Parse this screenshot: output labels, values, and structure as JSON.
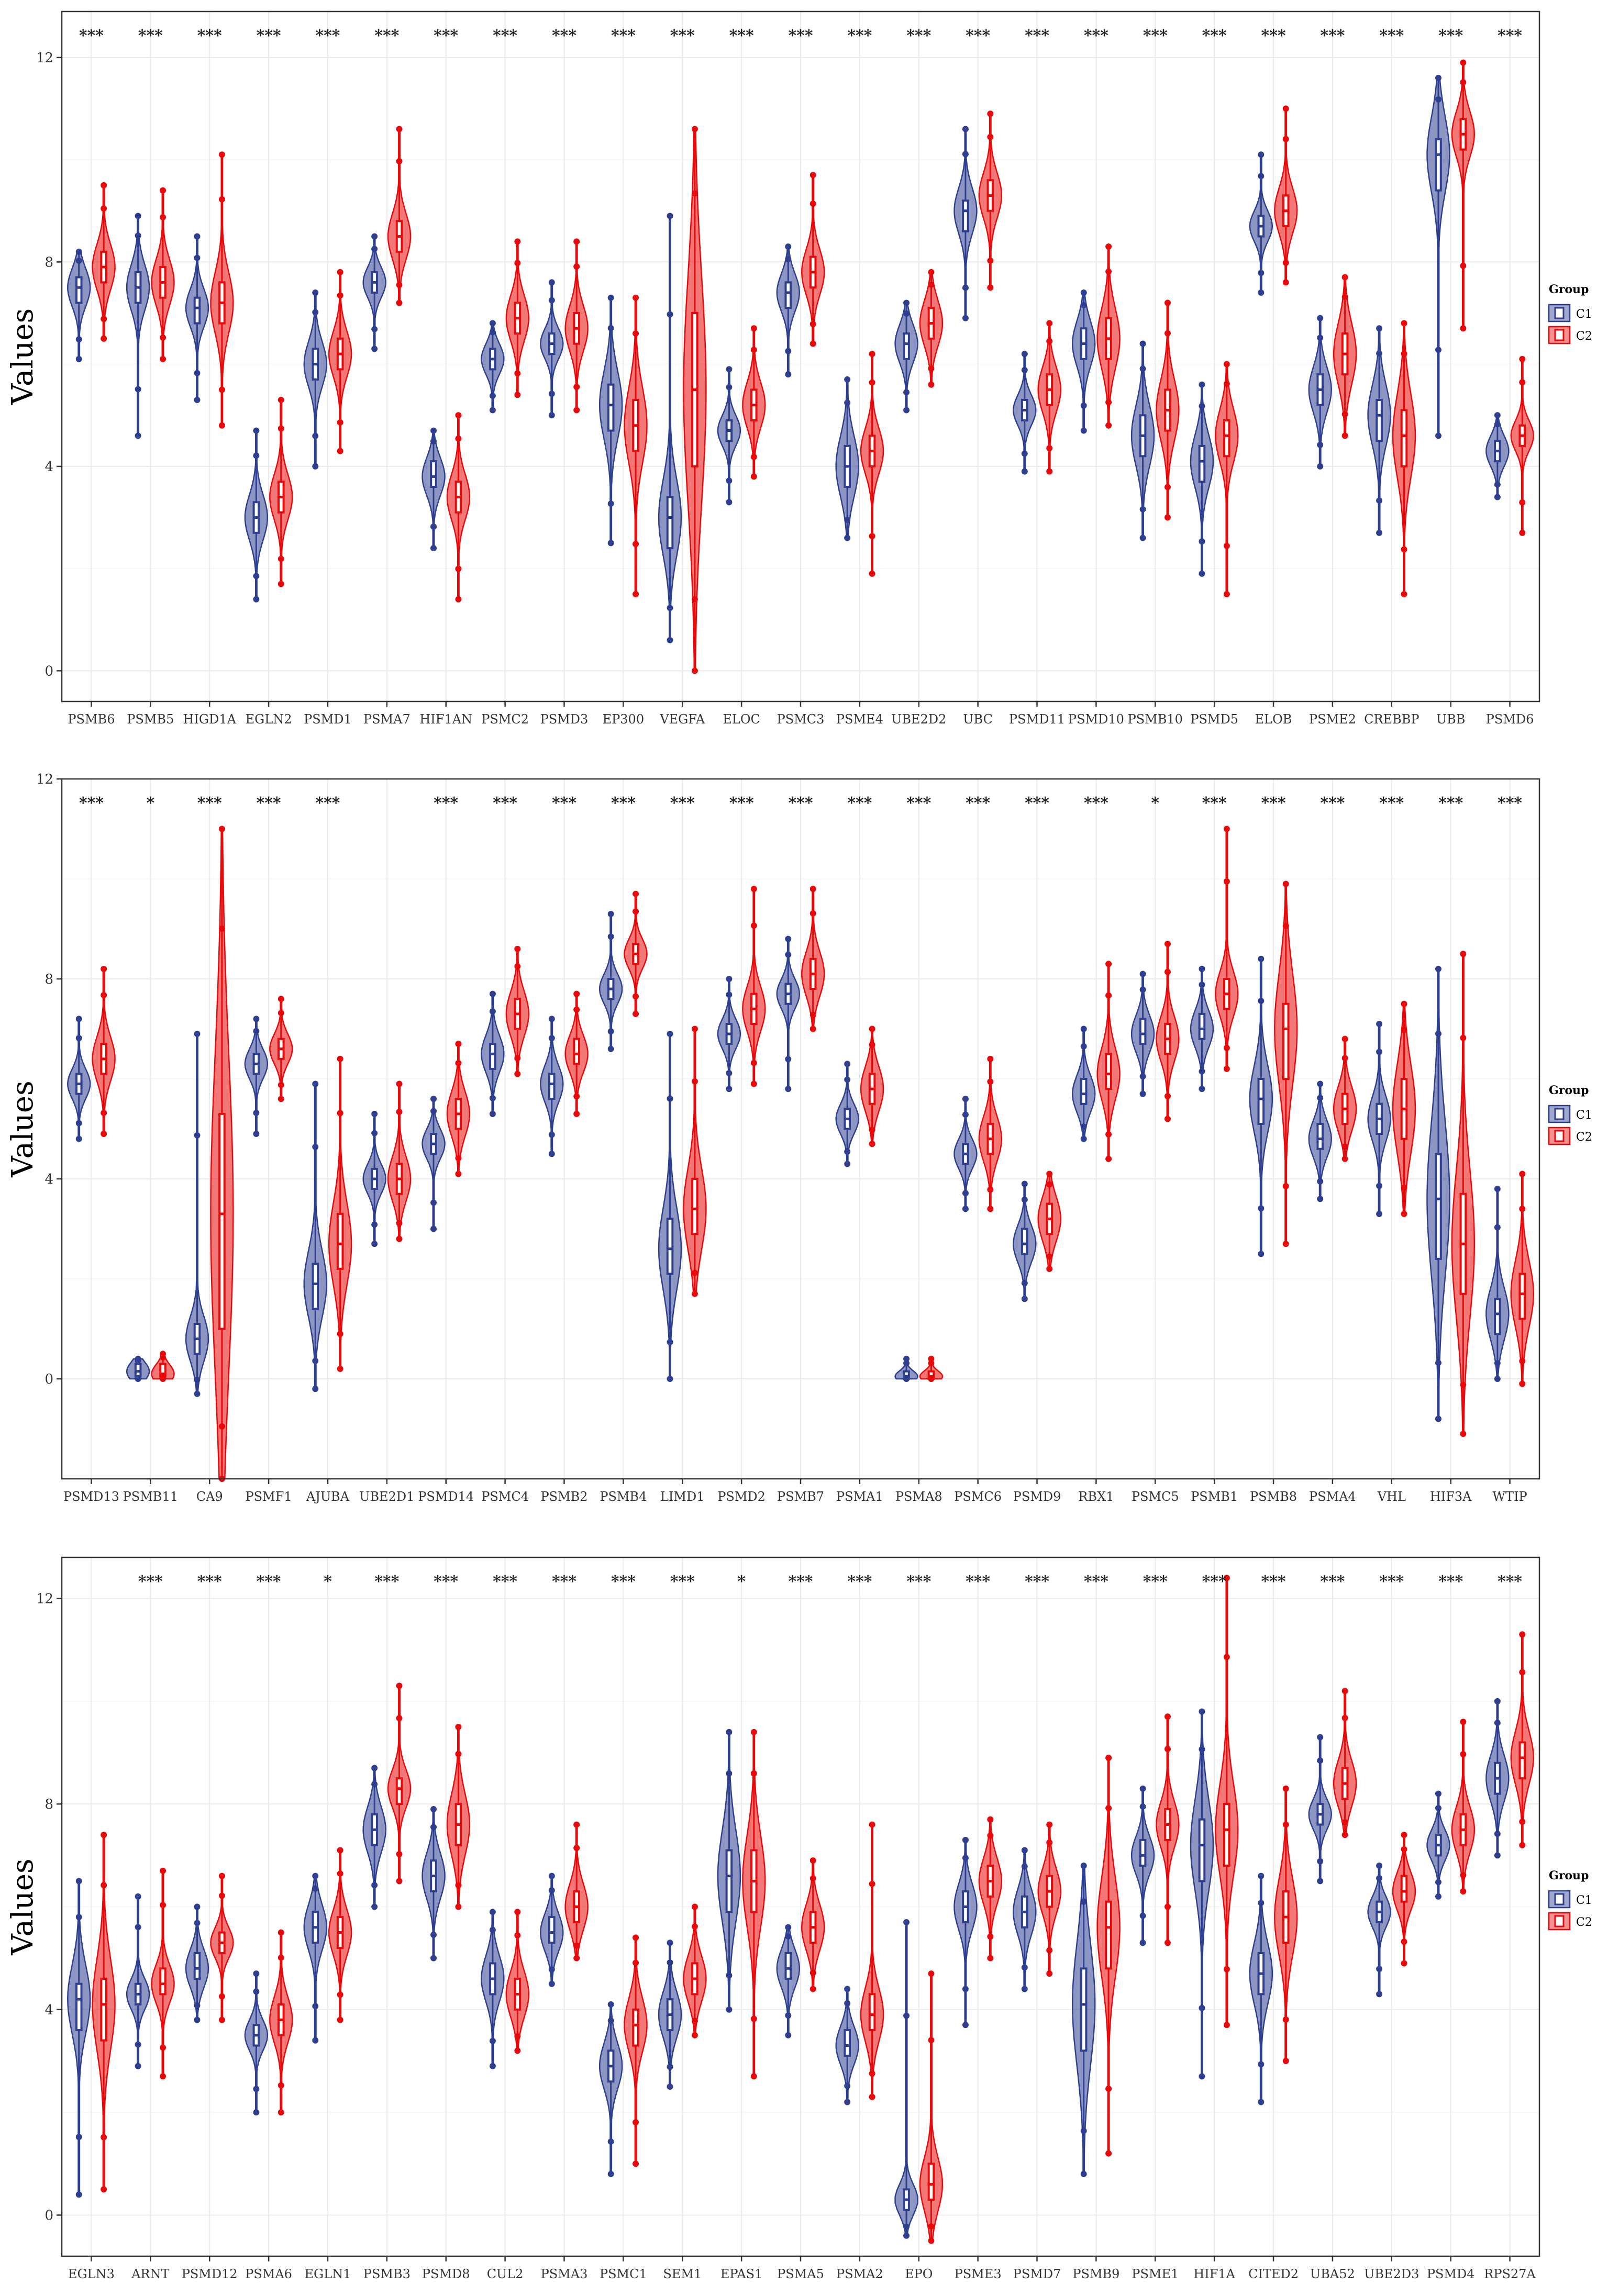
{
  "colors": {
    "c1": "#2f3f90",
    "c2": "#e8090a",
    "grid": "#ebebeb"
  },
  "legend": {
    "title": "Group",
    "labels": [
      "C1",
      "C2"
    ]
  },
  "chart_data": [
    {
      "type": "violin",
      "ylabel": "Values",
      "ylim": [
        -0.6,
        12.9
      ],
      "yticks": [
        0,
        4,
        8,
        12
      ],
      "categories": [
        "PSMB6",
        "PSMB5",
        "HIGD1A",
        "EGLN2",
        "PSMD1",
        "PSMA7",
        "HIF1AN",
        "PSMC2",
        "PSMD3",
        "EP300",
        "VEGFA",
        "ELOC",
        "PSMC3",
        "PSME4",
        "UBE2D2",
        "UBC",
        "PSMD11",
        "PSMD10",
        "PSMB10",
        "PSMD5",
        "ELOB",
        "PSME2",
        "CREBBP",
        "UBB",
        "PSMD6"
      ],
      "significance": [
        "***",
        "***",
        "***",
        "***",
        "***",
        "***",
        "***",
        "***",
        "***",
        "***",
        "***",
        "***",
        "***",
        "***",
        "***",
        "***",
        "***",
        "***",
        "***",
        "***",
        "***",
        "***",
        "***",
        "***",
        "***"
      ],
      "series": [
        {
          "name": "C1",
          "median": [
            7.5,
            7.5,
            7.1,
            3.0,
            6.0,
            7.6,
            3.8,
            6.1,
            6.4,
            5.2,
            3.0,
            4.7,
            7.4,
            4.0,
            6.4,
            9.0,
            5.1,
            6.4,
            4.6,
            4.1,
            8.7,
            5.5,
            5.0,
            10.1,
            4.3
          ],
          "q1": [
            7.2,
            7.2,
            6.8,
            2.7,
            5.7,
            7.4,
            3.6,
            5.9,
            6.2,
            4.7,
            2.4,
            4.5,
            7.1,
            3.6,
            6.1,
            8.6,
            4.9,
            6.1,
            4.2,
            3.7,
            8.5,
            5.2,
            4.5,
            9.4,
            4.1
          ],
          "q3": [
            7.7,
            7.8,
            7.3,
            3.3,
            6.3,
            7.8,
            4.1,
            6.3,
            6.6,
            5.6,
            3.4,
            4.9,
            7.6,
            4.4,
            6.6,
            9.2,
            5.3,
            6.7,
            5.0,
            4.4,
            8.9,
            5.8,
            5.3,
            10.4,
            4.5
          ],
          "min": [
            6.1,
            4.6,
            5.3,
            1.4,
            4.0,
            6.3,
            2.4,
            5.1,
            5.0,
            2.5,
            0.6,
            3.3,
            5.8,
            2.6,
            5.1,
            6.9,
            3.9,
            4.7,
            2.6,
            1.9,
            7.4,
            4.0,
            2.7,
            4.6,
            3.4
          ],
          "max": [
            8.2,
            8.9,
            8.5,
            4.7,
            7.4,
            8.5,
            4.7,
            6.8,
            7.6,
            7.3,
            8.9,
            5.9,
            8.3,
            5.7,
            7.2,
            10.6,
            6.2,
            7.4,
            6.4,
            5.6,
            10.1,
            6.9,
            6.7,
            11.6,
            5.0
          ]
        },
        {
          "name": "C2",
          "median": [
            7.9,
            7.6,
            7.2,
            3.4,
            6.2,
            8.5,
            3.4,
            6.9,
            6.7,
            4.8,
            5.5,
            5.2,
            7.8,
            4.3,
            6.8,
            9.3,
            5.5,
            6.5,
            5.1,
            4.6,
            9.0,
            6.2,
            4.6,
            10.5,
            4.6
          ],
          "q1": [
            7.6,
            7.3,
            6.8,
            3.1,
            5.9,
            8.2,
            3.1,
            6.6,
            6.4,
            4.3,
            4.0,
            4.9,
            7.5,
            4.0,
            6.5,
            9.0,
            5.2,
            6.1,
            4.7,
            4.2,
            8.7,
            5.8,
            4.0,
            10.2,
            4.4
          ],
          "q3": [
            8.2,
            7.9,
            7.6,
            3.7,
            6.5,
            8.8,
            3.7,
            7.2,
            7.0,
            5.3,
            7.0,
            5.5,
            8.1,
            4.6,
            7.1,
            9.6,
            5.8,
            6.9,
            5.5,
            4.9,
            9.3,
            6.6,
            5.1,
            10.8,
            4.8
          ],
          "min": [
            6.5,
            6.1,
            4.8,
            1.7,
            4.3,
            7.2,
            1.4,
            5.4,
            5.1,
            1.5,
            0.0,
            3.8,
            6.4,
            1.9,
            5.6,
            7.5,
            3.9,
            4.8,
            3.0,
            1.5,
            7.6,
            4.6,
            1.5,
            6.7,
            2.7
          ],
          "max": [
            9.5,
            9.4,
            10.1,
            5.3,
            7.8,
            10.6,
            5.0,
            8.4,
            8.4,
            7.3,
            10.6,
            6.7,
            9.7,
            6.2,
            7.8,
            10.9,
            6.8,
            8.3,
            7.2,
            6.0,
            11.0,
            7.7,
            6.8,
            11.9,
            6.1
          ]
        }
      ]
    },
    {
      "type": "violin",
      "ylabel": "Values",
      "ylim": [
        -2.0,
        12.0
      ],
      "yticks": [
        0,
        4,
        8,
        12
      ],
      "categories": [
        "PSMD13",
        "PSMB11",
        "CA9",
        "PSMF1",
        "AJUBA",
        "UBE2D1",
        "PSMD14",
        "PSMC4",
        "PSMB2",
        "PSMB4",
        "LIMD1",
        "PSMD2",
        "PSMB7",
        "PSMA1",
        "PSMA8",
        "PSMC6",
        "PSMD9",
        "RBX1",
        "PSMC5",
        "PSMB1",
        "PSMB8",
        "PSMA4",
        "VHL",
        "HIF3A",
        "WTIP"
      ],
      "significance": [
        "***",
        "*",
        "***",
        "***",
        "***",
        "",
        "***",
        "***",
        "***",
        "***",
        "***",
        "***",
        "***",
        "***",
        "***",
        "***",
        "***",
        "***",
        "*",
        "***",
        "***",
        "***",
        "***",
        "***",
        "***"
      ],
      "series": [
        {
          "name": "C1",
          "median": [
            5.9,
            0.15,
            0.8,
            6.3,
            1.9,
            4.0,
            4.7,
            6.5,
            5.9,
            7.8,
            2.6,
            6.9,
            7.7,
            5.2,
            0.05,
            4.5,
            2.7,
            5.7,
            6.9,
            7.0,
            5.6,
            4.8,
            5.2,
            3.6,
            1.3
          ],
          "q1": [
            5.7,
            0.05,
            0.5,
            6.1,
            1.4,
            3.8,
            4.5,
            6.2,
            5.6,
            7.6,
            2.1,
            6.7,
            7.5,
            5.0,
            0.0,
            4.3,
            2.5,
            5.5,
            6.7,
            6.8,
            5.1,
            4.6,
            4.9,
            2.4,
            0.9
          ],
          "q3": [
            6.1,
            0.3,
            1.1,
            6.5,
            2.3,
            4.2,
            4.9,
            6.7,
            6.1,
            8.0,
            3.2,
            7.1,
            7.9,
            5.4,
            0.15,
            4.7,
            3.0,
            6.0,
            7.2,
            7.3,
            6.0,
            5.1,
            5.5,
            4.5,
            1.6
          ],
          "min": [
            4.8,
            0.0,
            -0.3,
            4.9,
            -0.2,
            2.7,
            3.0,
            5.3,
            4.5,
            6.6,
            0.0,
            5.8,
            5.8,
            4.3,
            0.0,
            3.4,
            1.6,
            4.8,
            5.7,
            5.8,
            2.5,
            3.6,
            3.3,
            -0.8,
            0.0
          ],
          "max": [
            7.2,
            0.4,
            6.9,
            7.2,
            5.9,
            5.3,
            5.6,
            7.7,
            7.2,
            9.3,
            6.9,
            8.0,
            8.8,
            6.3,
            0.4,
            5.6,
            3.9,
            7.0,
            8.1,
            8.2,
            8.4,
            5.9,
            7.1,
            8.2,
            3.8
          ]
        },
        {
          "name": "C2",
          "median": [
            6.4,
            0.1,
            3.3,
            6.6,
            2.7,
            4.0,
            5.3,
            7.3,
            6.5,
            8.5,
            3.4,
            7.4,
            8.1,
            5.8,
            0.05,
            4.8,
            3.2,
            6.1,
            6.8,
            7.7,
            7.0,
            5.4,
            5.4,
            2.7,
            1.7
          ],
          "q1": [
            6.1,
            0.05,
            1.0,
            6.4,
            2.2,
            3.7,
            5.0,
            7.0,
            6.3,
            8.3,
            2.9,
            7.1,
            7.8,
            5.5,
            0.0,
            4.5,
            2.9,
            5.8,
            6.5,
            7.4,
            6.0,
            5.1,
            4.8,
            1.7,
            1.2
          ],
          "q3": [
            6.7,
            0.3,
            5.3,
            6.8,
            3.3,
            4.3,
            5.6,
            7.6,
            6.8,
            8.7,
            4.0,
            7.7,
            8.4,
            6.1,
            0.15,
            5.1,
            3.5,
            6.5,
            7.1,
            8.0,
            7.5,
            5.7,
            6.0,
            3.7,
            2.1
          ],
          "min": [
            4.9,
            0.0,
            -2.0,
            5.6,
            0.2,
            2.8,
            4.1,
            6.1,
            5.3,
            7.3,
            1.7,
            5.9,
            7.0,
            4.7,
            0.0,
            3.4,
            2.2,
            4.4,
            5.2,
            6.2,
            2.7,
            4.4,
            3.3,
            -1.1,
            -0.1
          ],
          "max": [
            8.2,
            0.5,
            11.0,
            7.6,
            6.4,
            5.9,
            6.7,
            8.6,
            7.7,
            9.7,
            7.0,
            9.8,
            9.8,
            7.0,
            0.4,
            6.4,
            4.1,
            8.3,
            8.7,
            11.0,
            9.9,
            6.8,
            7.5,
            8.5,
            4.1
          ]
        }
      ]
    },
    {
      "type": "violin",
      "ylabel": "Values",
      "ylim": [
        -0.8,
        12.8
      ],
      "yticks": [
        0,
        4,
        8,
        12
      ],
      "categories": [
        "EGLN3",
        "ARNT",
        "PSMD12",
        "PSMA6",
        "EGLN1",
        "PSMB3",
        "PSMD8",
        "CUL2",
        "PSMA3",
        "PSMC1",
        "SEM1",
        "EPAS1",
        "PSMA5",
        "PSMA2",
        "EPO",
        "PSME3",
        "PSMD7",
        "PSMB9",
        "PSME1",
        "HIF1A",
        "CITED2",
        "UBA52",
        "UBE2D3",
        "PSMD4",
        "RPS27A"
      ],
      "significance": [
        "",
        "***",
        "***",
        "***",
        "*",
        "***",
        "***",
        "***",
        "***",
        "***",
        "***",
        "*",
        "***",
        "***",
        "***",
        "***",
        "***",
        "***",
        "***",
        "***",
        "***",
        "***",
        "***",
        "***",
        "***"
      ],
      "series": [
        {
          "name": "C1",
          "median": [
            4.2,
            4.3,
            4.8,
            3.5,
            5.6,
            7.5,
            6.6,
            4.6,
            5.5,
            2.9,
            3.9,
            6.6,
            4.8,
            3.3,
            0.3,
            6.0,
            5.9,
            4.1,
            7.0,
            7.2,
            4.7,
            7.8,
            5.9,
            7.2,
            8.5
          ],
          "q1": [
            3.6,
            4.1,
            4.6,
            3.3,
            5.3,
            7.2,
            6.3,
            4.3,
            5.3,
            2.6,
            3.6,
            5.9,
            4.6,
            3.1,
            0.1,
            5.7,
            5.6,
            3.2,
            6.8,
            6.5,
            4.3,
            7.6,
            5.7,
            7.0,
            8.2
          ],
          "q3": [
            4.5,
            4.5,
            5.1,
            3.7,
            5.9,
            7.8,
            6.9,
            4.9,
            5.8,
            3.2,
            4.2,
            7.1,
            5.1,
            3.6,
            0.5,
            6.3,
            6.2,
            4.8,
            7.3,
            7.7,
            5.1,
            8.0,
            6.1,
            7.4,
            8.8
          ],
          "min": [
            0.4,
            2.9,
            3.8,
            2.0,
            3.4,
            6.0,
            5.0,
            2.9,
            4.5,
            0.8,
            2.5,
            4.0,
            3.5,
            2.2,
            -0.4,
            3.7,
            4.4,
            0.8,
            5.3,
            2.7,
            2.2,
            6.5,
            4.3,
            6.2,
            7.0
          ],
          "max": [
            6.5,
            6.2,
            6.0,
            4.7,
            6.6,
            8.7,
            7.9,
            5.9,
            6.6,
            4.1,
            5.3,
            9.4,
            5.6,
            4.4,
            5.7,
            7.3,
            7.1,
            6.8,
            8.3,
            9.8,
            6.6,
            9.3,
            6.8,
            8.2,
            10.0
          ]
        },
        {
          "name": "C2",
          "median": [
            4.1,
            4.5,
            5.3,
            3.8,
            5.5,
            8.3,
            7.6,
            4.3,
            6.0,
            3.7,
            4.6,
            6.5,
            5.6,
            3.9,
            0.6,
            6.5,
            6.3,
            5.6,
            7.6,
            7.5,
            5.8,
            8.4,
            6.3,
            7.5,
            8.9
          ],
          "q1": [
            3.4,
            4.3,
            5.1,
            3.5,
            5.2,
            8.0,
            7.2,
            4.0,
            5.7,
            3.3,
            4.3,
            5.9,
            5.3,
            3.6,
            0.3,
            6.2,
            6.0,
            4.8,
            7.3,
            6.8,
            5.3,
            8.1,
            6.1,
            7.2,
            8.5
          ],
          "q3": [
            4.6,
            4.8,
            5.5,
            4.1,
            5.8,
            8.5,
            8.0,
            4.6,
            6.3,
            4.0,
            4.9,
            7.1,
            5.9,
            4.3,
            1.0,
            6.8,
            6.6,
            6.1,
            7.9,
            8.0,
            6.3,
            8.7,
            6.6,
            7.8,
            9.2
          ],
          "min": [
            0.5,
            2.7,
            3.8,
            2.0,
            3.8,
            6.5,
            6.0,
            3.2,
            5.0,
            1.0,
            3.5,
            2.7,
            4.4,
            2.3,
            -0.5,
            5.0,
            4.7,
            1.2,
            5.3,
            3.7,
            3.0,
            7.4,
            4.9,
            6.3,
            7.2
          ],
          "max": [
            7.4,
            6.7,
            6.6,
            5.5,
            7.1,
            10.3,
            9.5,
            5.9,
            7.6,
            5.4,
            6.0,
            9.4,
            6.9,
            7.6,
            4.7,
            7.7,
            7.6,
            8.9,
            9.7,
            12.4,
            8.3,
            10.2,
            7.4,
            9.6,
            11.3
          ]
        }
      ]
    }
  ]
}
